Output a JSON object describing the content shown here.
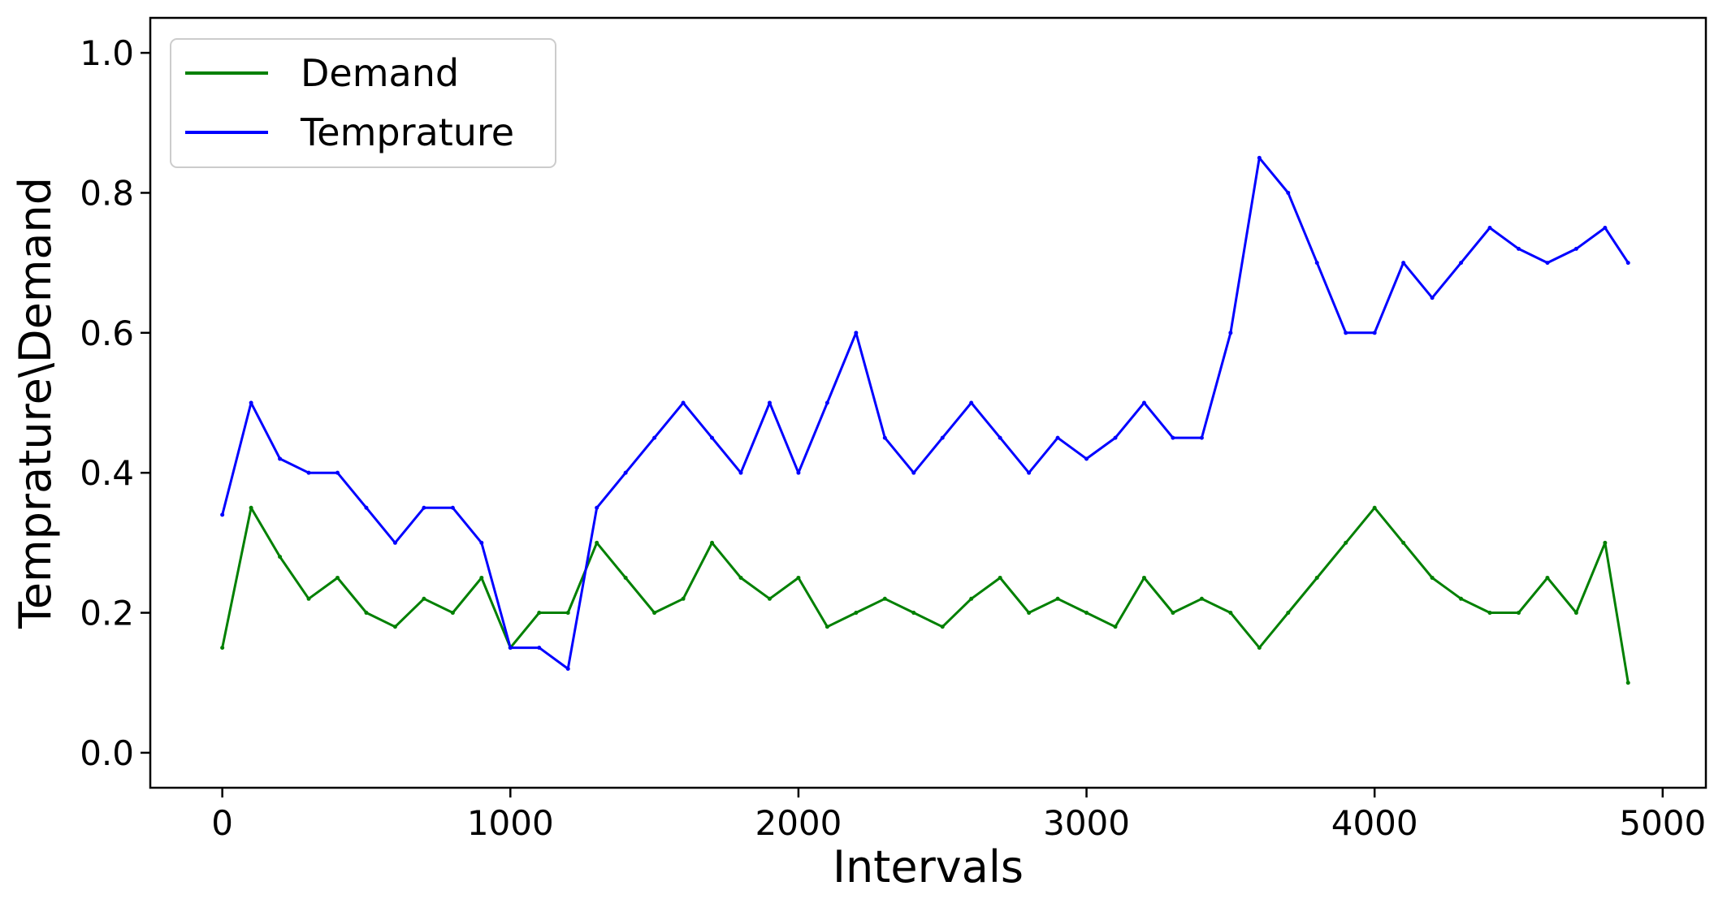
{
  "chart_data": {
    "type": "line",
    "title": "",
    "xlabel": "Intervals",
    "ylabel": "Temprature\\Demand",
    "xlim": [
      -250,
      5150
    ],
    "ylim": [
      -0.05,
      1.05
    ],
    "xticks": [
      0,
      1000,
      2000,
      3000,
      4000,
      5000
    ],
    "xtick_labels": [
      "0",
      "1000",
      "2000",
      "3000",
      "4000",
      "5000"
    ],
    "yticks": [
      0.0,
      0.2,
      0.4,
      0.6,
      0.8,
      1.0
    ],
    "ytick_labels": [
      "0.0",
      "0.2",
      "0.4",
      "0.6",
      "0.8",
      "1.0"
    ],
    "grid": false,
    "legend_position": "top-left",
    "colors": {
      "Demand": "#008000",
      "Temprature": "#0000ff"
    },
    "series": [
      {
        "name": "Demand",
        "x": [
          0,
          100,
          200,
          300,
          400,
          500,
          600,
          700,
          800,
          900,
          1000,
          1100,
          1200,
          1300,
          1400,
          1500,
          1600,
          1700,
          1800,
          1900,
          2000,
          2100,
          2200,
          2300,
          2400,
          2500,
          2600,
          2700,
          2800,
          2900,
          3000,
          3100,
          3200,
          3300,
          3400,
          3500,
          3600,
          3700,
          3800,
          3900,
          4000,
          4100,
          4200,
          4300,
          4400,
          4500,
          4600,
          4700,
          4800,
          4880
        ],
        "values": [
          0.15,
          0.35,
          0.28,
          0.22,
          0.25,
          0.2,
          0.18,
          0.22,
          0.2,
          0.25,
          0.15,
          0.2,
          0.2,
          0.3,
          0.25,
          0.2,
          0.22,
          0.3,
          0.25,
          0.22,
          0.25,
          0.18,
          0.2,
          0.22,
          0.2,
          0.18,
          0.22,
          0.25,
          0.2,
          0.22,
          0.2,
          0.18,
          0.25,
          0.2,
          0.22,
          0.2,
          0.15,
          0.2,
          0.25,
          0.3,
          0.35,
          0.3,
          0.25,
          0.22,
          0.2,
          0.2,
          0.25,
          0.2,
          0.3,
          0.1
        ]
      },
      {
        "name": "Temprature",
        "x": [
          0,
          100,
          200,
          300,
          400,
          500,
          600,
          700,
          800,
          900,
          1000,
          1100,
          1200,
          1300,
          1400,
          1500,
          1600,
          1700,
          1800,
          1900,
          2000,
          2100,
          2200,
          2300,
          2400,
          2500,
          2600,
          2700,
          2800,
          2900,
          3000,
          3100,
          3200,
          3300,
          3400,
          3500,
          3600,
          3700,
          3800,
          3900,
          4000,
          4100,
          4200,
          4300,
          4400,
          4500,
          4600,
          4700,
          4800,
          4880
        ],
        "values": [
          0.34,
          0.5,
          0.42,
          0.4,
          0.4,
          0.35,
          0.3,
          0.35,
          0.35,
          0.3,
          0.15,
          0.15,
          0.12,
          0.35,
          0.4,
          0.45,
          0.5,
          0.45,
          0.4,
          0.5,
          0.4,
          0.5,
          0.6,
          0.45,
          0.4,
          0.45,
          0.5,
          0.45,
          0.4,
          0.45,
          0.42,
          0.45,
          0.5,
          0.45,
          0.45,
          0.6,
          0.85,
          0.8,
          0.7,
          0.6,
          0.6,
          0.7,
          0.65,
          0.7,
          0.75,
          0.72,
          0.7,
          0.72,
          0.75,
          0.7
        ]
      }
    ]
  }
}
